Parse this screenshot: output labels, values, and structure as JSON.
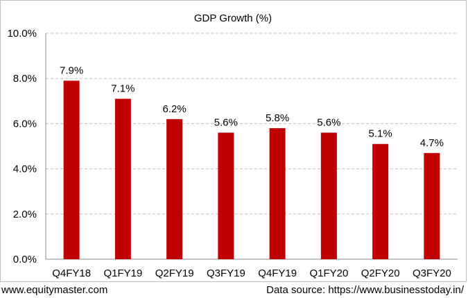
{
  "chart_data": {
    "type": "bar",
    "title": "GDP Growth (%)",
    "xlabel": "",
    "ylabel": "",
    "categories": [
      "Q4FY18",
      "Q1FY19",
      "Q2FY19",
      "Q3FY19",
      "Q4FY19",
      "Q1FY20",
      "Q2FY20",
      "Q3FY20"
    ],
    "values": [
      7.9,
      7.1,
      6.2,
      5.6,
      5.8,
      5.6,
      5.1,
      4.7
    ],
    "data_labels": [
      "7.9%",
      "7.1%",
      "6.2%",
      "5.6%",
      "5.8%",
      "5.6%",
      "5.1%",
      "4.7%"
    ],
    "ylim": [
      0,
      10
    ],
    "yticks": [
      0,
      2,
      4,
      6,
      8,
      10
    ],
    "ytick_labels": [
      "0.0%",
      "2.0%",
      "4.0%",
      "6.0%",
      "8.0%",
      "10.0%"
    ],
    "grid": true,
    "legend": "none",
    "bar_color": "#c00000",
    "grid_color": "#bfbfbf"
  },
  "footer": {
    "left": "www.equitymaster.com",
    "right": "Data source: https://www.businesstoday.in/"
  }
}
